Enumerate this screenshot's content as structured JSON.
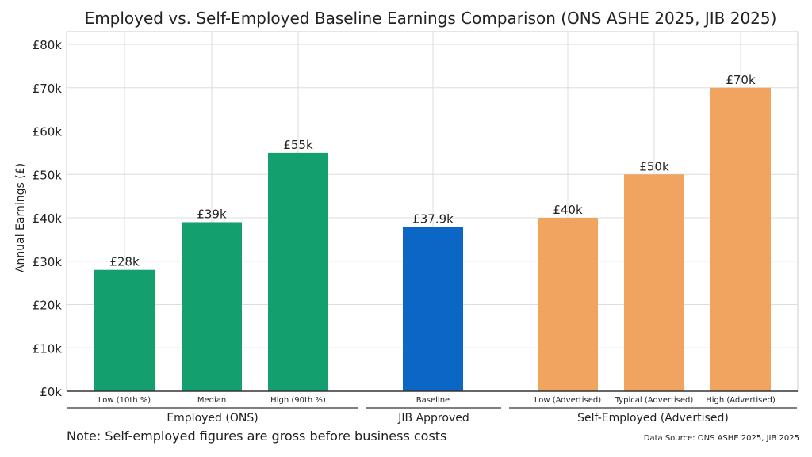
{
  "chart_data": {
    "type": "bar",
    "title": "Employed vs. Self-Employed Baseline Earnings Comparison (ONS ASHE 2025, JIB 2025)",
    "ylabel": "Annual Earnings (£)",
    "xlabel": "",
    "ylim": [
      0,
      80000
    ],
    "yticks": [
      0,
      10000,
      20000,
      30000,
      40000,
      50000,
      60000,
      70000,
      80000
    ],
    "ytick_labels": [
      "£0k",
      "£10k",
      "£20k",
      "£30k",
      "£40k",
      "£50k",
      "£60k",
      "£70k",
      "£80k"
    ],
    "grid": true,
    "categories": [
      "Low (10th %)",
      "Median",
      "High (90th %)",
      "Baseline",
      "Low (Advertised)",
      "Typical (Advertised)",
      "High (Advertised)"
    ],
    "values": [
      28000,
      39000,
      55000,
      37900,
      40000,
      50000,
      70000
    ],
    "data_labels": [
      "£28k",
      "£39k",
      "£55k",
      "£37.9k",
      "£40k",
      "£50k",
      "£70k"
    ],
    "groups": [
      {
        "name": "Employed (ONS)",
        "members": [
          0,
          1,
          2
        ],
        "color": "#14a06e"
      },
      {
        "name": "JIB Approved",
        "members": [
          3
        ],
        "color": "#0b66c6"
      },
      {
        "name": "Self-Employed (Advertised)",
        "members": [
          4,
          5,
          6
        ],
        "color": "#f0a460"
      }
    ],
    "note": "Note: Self-employed figures are gross before business costs",
    "source": "Data Source: ONS ASHE 2025, JIB 2025"
  }
}
